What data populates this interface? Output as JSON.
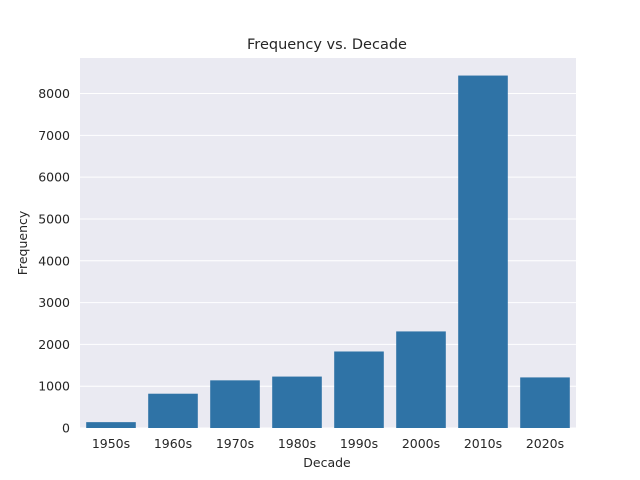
{
  "chart_data": {
    "type": "bar",
    "title": "Frequency vs. Decade",
    "xlabel": "Decade",
    "ylabel": "Frequency",
    "categories": [
      "1950s",
      "1960s",
      "1970s",
      "1980s",
      "1990s",
      "2000s",
      "2010s",
      "2020s"
    ],
    "values": [
      140,
      820,
      1140,
      1230,
      1830,
      2310,
      8430,
      1210
    ],
    "ylim": [
      0,
      8850
    ],
    "yticks": [
      0,
      1000,
      2000,
      3000,
      4000,
      5000,
      6000,
      7000,
      8000
    ],
    "grid": true,
    "legend": "none",
    "colors": {
      "bar": "#2f73a6",
      "plot_background": "#eaeaf2",
      "grid": "#ffffff"
    }
  }
}
